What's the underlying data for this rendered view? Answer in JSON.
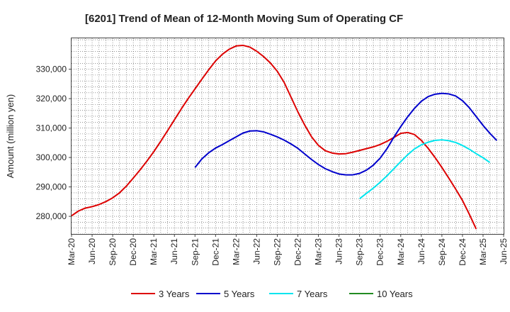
{
  "chart_data": {
    "type": "line",
    "title": "[6201]  Trend of Mean of 12-Month Moving Sum of Operating CF",
    "xlabel": "",
    "ylabel": "Amount (million yen)",
    "ylim": [
      274000,
      340500
    ],
    "yticks": [
      280000,
      290000,
      300000,
      310000,
      320000,
      330000
    ],
    "ytick_labels": [
      "280,000",
      "290,000",
      "300,000",
      "310,000",
      "320,000",
      "330,000"
    ],
    "x_start": "Mar-20",
    "x_end": "Jun-25",
    "xtick_labels": [
      "Mar-20",
      "Jun-20",
      "Sep-20",
      "Dec-20",
      "Mar-21",
      "Jun-21",
      "Sep-21",
      "Dec-21",
      "Mar-22",
      "Jun-22",
      "Sep-22",
      "Dec-22",
      "Mar-23",
      "Jun-23",
      "Sep-23",
      "Dec-23",
      "Mar-24",
      "Jun-24",
      "Sep-24",
      "Dec-24",
      "Mar-25",
      "Jun-25"
    ],
    "grid": true,
    "legend_position": "bottom",
    "series": [
      {
        "name": "3 Years",
        "color": "#dd0000",
        "start_index": 0,
        "values": [
          280200,
          281800,
          282800,
          283300,
          284000,
          285000,
          286300,
          288000,
          290300,
          293000,
          295800,
          298800,
          302000,
          305500,
          309100,
          312800,
          316500,
          320000,
          323300,
          326600,
          329800,
          332800,
          335100,
          336800,
          337900,
          338100,
          337500,
          336100,
          334300,
          332100,
          329300,
          325500,
          320500,
          315500,
          311000,
          307000,
          304100,
          302300,
          301500,
          301200,
          301300,
          301800,
          302400,
          303000,
          303600,
          304400,
          305500,
          306800,
          308200,
          308500,
          307800,
          305800,
          303100,
          300000,
          296600,
          293000,
          289300,
          285400,
          280700,
          275700
        ]
      },
      {
        "name": "5 Years",
        "color": "#0000cc",
        "start_index": 18,
        "values": [
          296600,
          299500,
          301600,
          303200,
          304400,
          305700,
          307000,
          308300,
          309000,
          309100,
          308700,
          307900,
          307000,
          305900,
          304600,
          303100,
          301200,
          299300,
          297600,
          296200,
          295200,
          294400,
          294100,
          294100,
          294600,
          295700,
          297400,
          299800,
          303000,
          306900,
          310500,
          313800,
          316700,
          319100,
          320700,
          321500,
          321800,
          321600,
          320900,
          319300,
          316900,
          313900,
          310900,
          308200,
          305800
        ]
      },
      {
        "name": "7 Years",
        "color": "#00e5ee",
        "start_index": 42,
        "values": [
          286000,
          287800,
          289600,
          291600,
          293800,
          296200,
          298600,
          300900,
          302900,
          304300,
          305200,
          305800,
          306000,
          305700,
          305100,
          304100,
          302800,
          301300,
          299900,
          298300
        ]
      },
      {
        "name": "10 Years",
        "color": "#228b22",
        "start_index": 0,
        "values": []
      }
    ]
  }
}
